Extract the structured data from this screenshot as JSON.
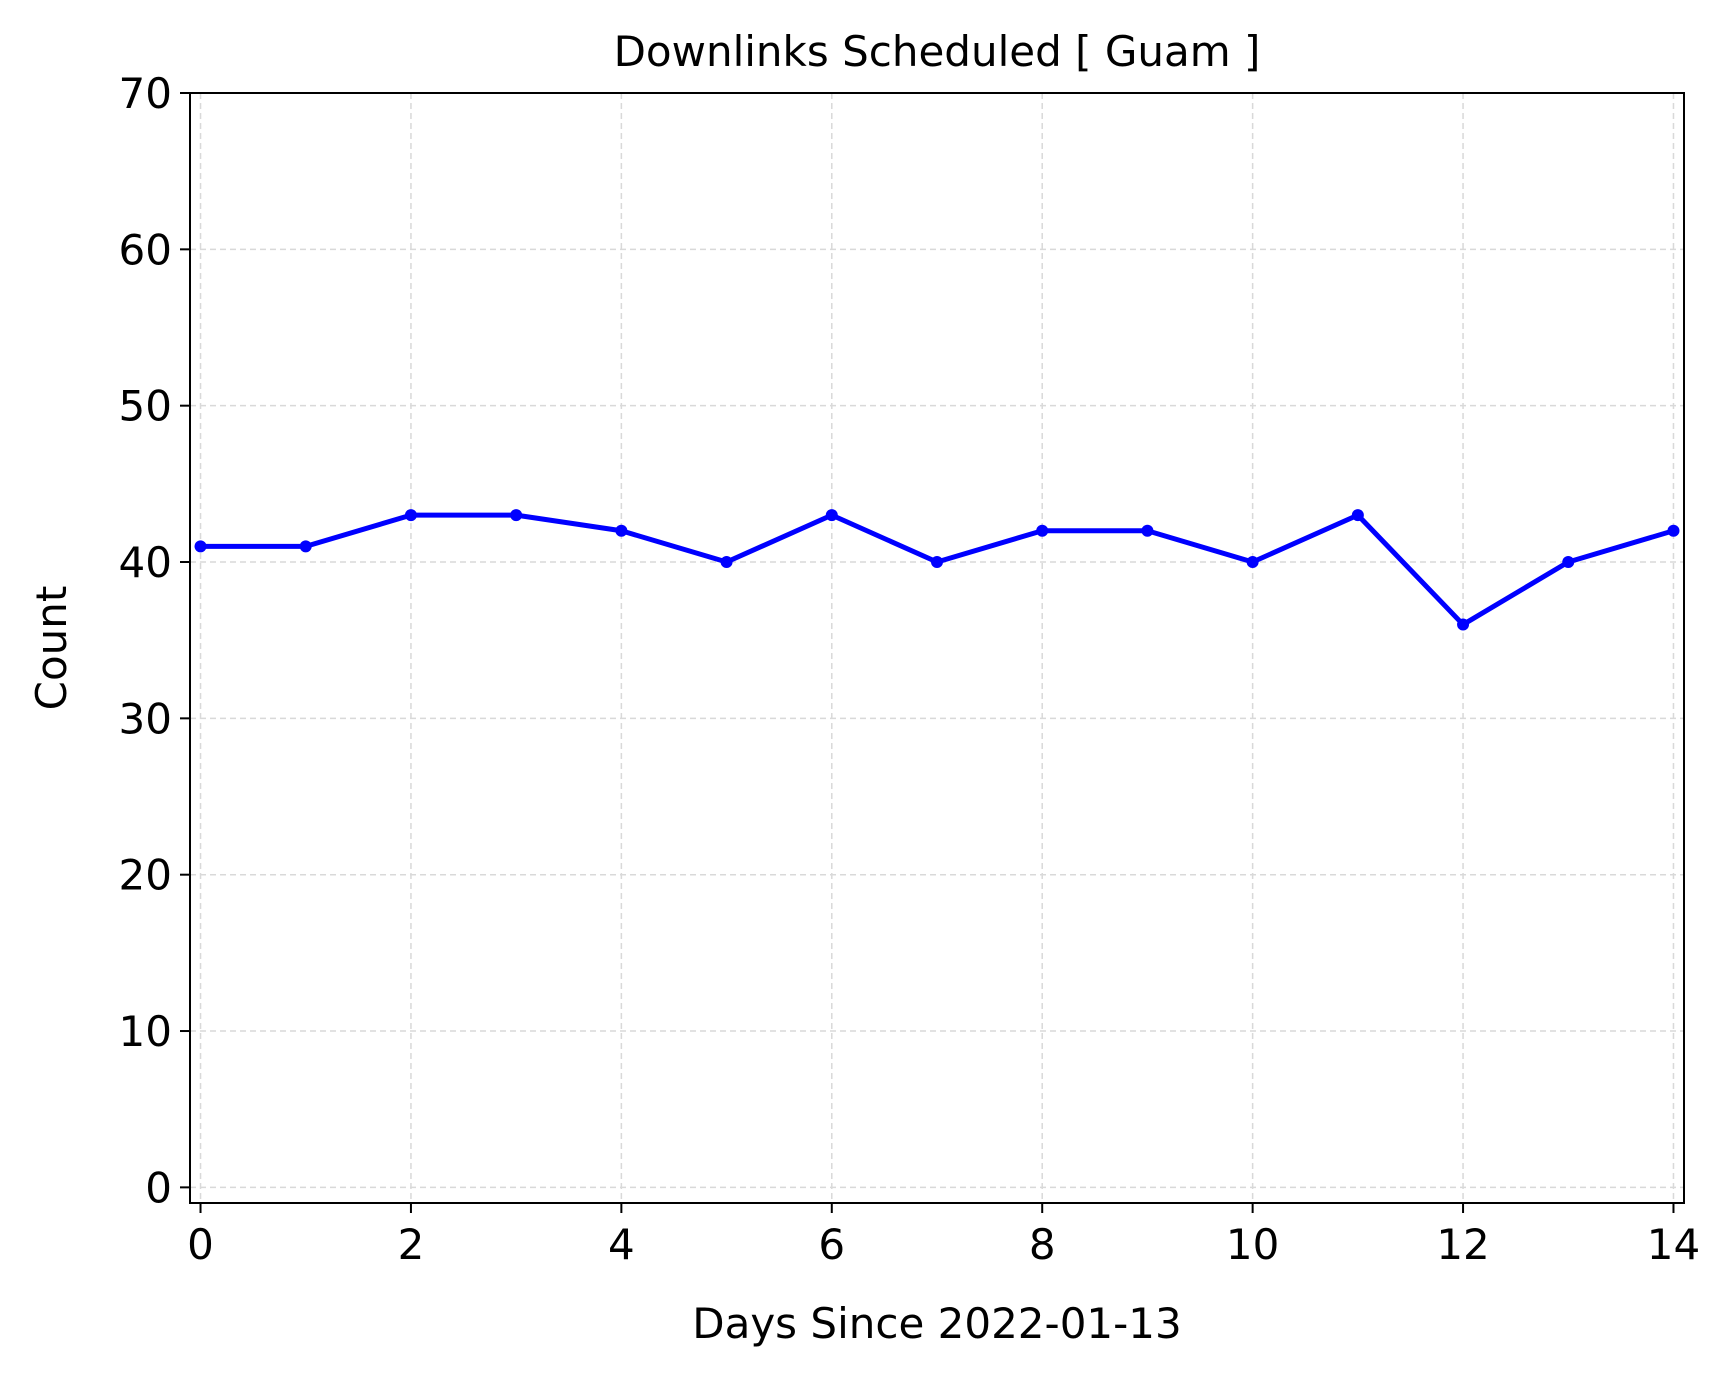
{
  "chart_data": {
    "type": "line",
    "title": "Downlinks Scheduled [ Guam ]",
    "xlabel": "Days Since 2022-01-13",
    "ylabel": "Count",
    "x": [
      0,
      1,
      2,
      3,
      4,
      5,
      6,
      7,
      8,
      9,
      10,
      11,
      12,
      13,
      14
    ],
    "series": [
      {
        "values": [
          41,
          41,
          43,
          43,
          42,
          40,
          43,
          40,
          42,
          42,
          40,
          43,
          36,
          40,
          42
        ],
        "color": "#0000ff",
        "marker": "circle"
      }
    ],
    "xlim": [
      -0.1,
      14.1
    ],
    "ylim": [
      -1,
      70
    ],
    "xticks": [
      "0",
      "2",
      "4",
      "6",
      "8",
      "10",
      "12",
      "14"
    ],
    "yticks": [
      "0",
      "10",
      "20",
      "30",
      "40",
      "50",
      "60",
      "70"
    ],
    "grid": true
  }
}
